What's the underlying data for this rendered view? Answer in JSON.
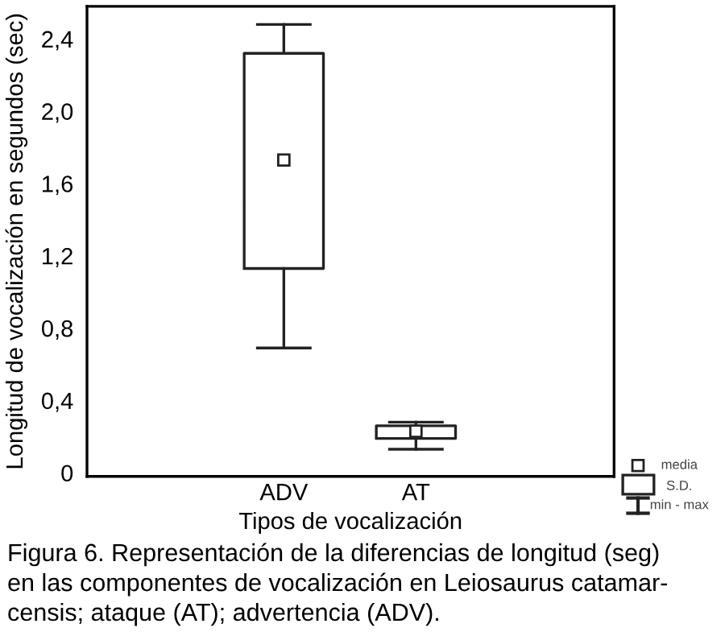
{
  "chart_data": {
    "type": "box",
    "xlabel": "Tipos de vocalización",
    "ylabel": "Longitud de vocalización en segundos (sec)",
    "categories": [
      "ADV",
      "AT"
    ],
    "boxes": [
      {
        "low": 0.69,
        "q1": 1.13,
        "q3": 2.32,
        "high": 2.48,
        "mean": 1.73
      },
      {
        "low": 0.13,
        "q1": 0.19,
        "q3": 0.26,
        "high": 0.28,
        "mean": 0.23
      }
    ],
    "ylim": [
      -0.02,
      2.58
    ],
    "yticks": [
      {
        "value": 0,
        "label": "0"
      },
      {
        "value": 0.4,
        "label": "0,4"
      },
      {
        "value": 0.8,
        "label": "0,8"
      },
      {
        "value": 1.2,
        "label": "1,2"
      },
      {
        "value": 1.6,
        "label": "1,6"
      },
      {
        "value": 2.0,
        "label": "2,0"
      },
      {
        "value": 2.4,
        "label": "2,4"
      }
    ],
    "grid": false,
    "annotations": [
      "media",
      "S.D.",
      "min - max",
      "Figura 6. Representación de la diferencias de longitud (seg)",
      "en las componentes de vocalización en Leiosaurus catamar-",
      "censis; ataque (AT); advertencia (ADV)."
    ]
  }
}
